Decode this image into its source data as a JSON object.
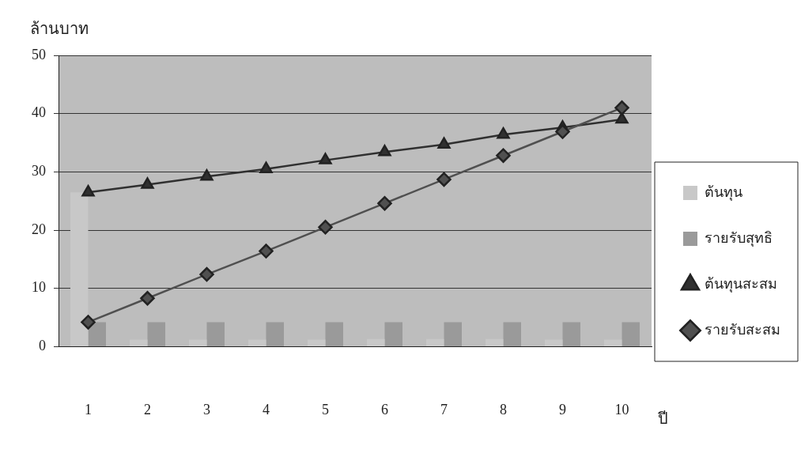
{
  "chart_data": {
    "type": "bar",
    "xlabel": "ปี",
    "ylabel": "ล้านบาท",
    "categories": [
      "1",
      "2",
      "3",
      "4",
      "5",
      "6",
      "7",
      "8",
      "9",
      "10"
    ],
    "series": [
      {
        "name": "ต้นทุน",
        "color": "#c8c8c8",
        "values": [
          26.5,
          1.2,
          1.2,
          1.2,
          1.2,
          1.3,
          1.3,
          1.3,
          1.2,
          1.2
        ]
      },
      {
        "name": "รายรับสุทธิ",
        "color": "#9a9a9a",
        "values": [
          4.2,
          4.2,
          4.2,
          4.2,
          4.2,
          4.2,
          4.2,
          4.2,
          4.2,
          4.2
        ]
      },
      {
        "name": "ต้นทุนสะสม",
        "type": "line",
        "color": "#303030",
        "marker": "triangle",
        "values": [
          26.5,
          27.8,
          29.2,
          30.5,
          32,
          33.4,
          34.7,
          36.4,
          37.6,
          39
        ]
      },
      {
        "name": "รายรับสะสม",
        "type": "line",
        "color": "#505050",
        "marker": "diamond",
        "values": [
          4.2,
          8.3,
          12.4,
          16.4,
          20.5,
          24.6,
          28.7,
          32.8,
          36.9,
          41
        ]
      }
    ],
    "ylim": [
      0,
      50
    ],
    "yticks": [
      0,
      10,
      20,
      30,
      40,
      50
    ],
    "grid": "y",
    "legend": "right"
  }
}
